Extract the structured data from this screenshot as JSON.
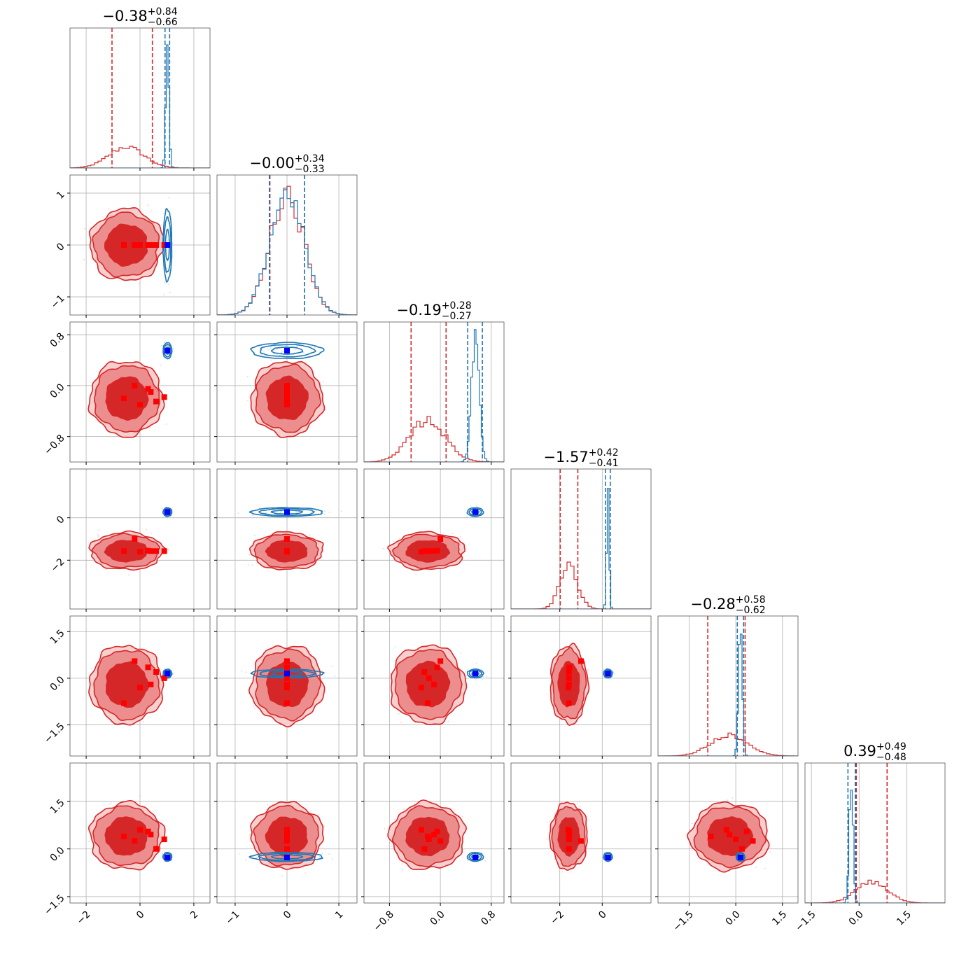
{
  "chart_data": {
    "type": "corner",
    "colors": {
      "posterior_a": "#d62728",
      "posterior_b": "#1f77b4",
      "marker_a": "#ff0000",
      "marker_b": "#0000ff",
      "grid": "#b0b0b0"
    },
    "parameters": [
      {
        "title_main": "−0.38",
        "title_plus": "+0.84",
        "title_minus": "−0.66",
        "range": [
          -2.6,
          2.6
        ],
        "ticks": [
          -2,
          0,
          2
        ],
        "tick_labels": [
          "−2",
          "0",
          "2"
        ],
        "red_quantiles": [
          -1.04,
          0.46
        ],
        "blue_quantiles": [
          0.93,
          1.1
        ],
        "red_hist": {
          "mu": -0.5,
          "sigma": 0.65
        },
        "blue_hist": {
          "mu": 1.02,
          "sigma": 0.06
        }
      },
      {
        "title_main": "−0.00",
        "title_plus": "+0.34",
        "title_minus": "−0.33",
        "range": [
          -1.35,
          1.35
        ],
        "ticks": [
          -1,
          0,
          1
        ],
        "tick_labels": [
          "−1",
          "0",
          "1"
        ],
        "red_quantiles": [
          -0.33,
          0.34
        ],
        "blue_quantiles": [
          -0.34,
          0.34
        ],
        "red_hist": {
          "mu": 0.0,
          "sigma": 0.33
        },
        "blue_hist": {
          "mu": 0.0,
          "sigma": 0.33
        }
      },
      {
        "title_main": "−0.19",
        "title_plus": "+0.28",
        "title_minus": "−0.27",
        "range": [
          -1.2,
          1.0
        ],
        "ticks": [
          -0.8,
          0.0,
          0.8
        ],
        "tick_labels": [
          "−0.8",
          "0.0",
          "0.8"
        ],
        "red_quantiles": [
          -0.46,
          0.09
        ],
        "blue_quantiles": [
          0.43,
          0.66
        ],
        "red_hist": {
          "mu": -0.2,
          "sigma": 0.28
        },
        "blue_hist": {
          "mu": 0.55,
          "sigma": 0.06
        }
      },
      {
        "title_main": "−1.57",
        "title_plus": "+0.42",
        "title_minus": "−0.41",
        "range": [
          -4.3,
          2.3
        ],
        "ticks": [
          -2,
          0
        ],
        "tick_labels": [
          "−2",
          "0"
        ],
        "red_quantiles": [
          -1.98,
          -1.15
        ],
        "blue_quantiles": [
          0.15,
          0.38
        ],
        "red_hist": {
          "mu": -1.57,
          "sigma": 0.42
        },
        "blue_hist": {
          "mu": 0.27,
          "sigma": 0.06
        }
      },
      {
        "title_main": "−0.28",
        "title_plus": "+0.58",
        "title_minus": "−0.62",
        "range": [
          -2.5,
          2.0
        ],
        "ticks": [
          -1.5,
          0.0,
          1.5
        ],
        "tick_labels": [
          "−1.5",
          "0.0",
          "1.5"
        ],
        "red_quantiles": [
          -0.9,
          0.3
        ],
        "blue_quantiles": [
          0.05,
          0.25
        ],
        "red_hist": {
          "mu": -0.2,
          "sigma": 0.6
        },
        "blue_hist": {
          "mu": 0.15,
          "sigma": 0.06
        }
      },
      {
        "title_main": "0.39",
        "title_plus": "+0.49",
        "title_minus": "−0.48",
        "range": [
          -1.7,
          2.7
        ],
        "ticks": [
          -1.5,
          0.0,
          1.5
        ],
        "tick_labels": [
          "−1.5",
          "0.0",
          "1.5"
        ],
        "red_quantiles": [
          -0.09,
          0.88
        ],
        "blue_quantiles": [
          -0.35,
          -0.12
        ],
        "red_hist": {
          "mu": 0.4,
          "sigma": 0.5
        },
        "blue_hist": {
          "mu": -0.25,
          "sigma": 0.06
        }
      }
    ],
    "red_markers": [
      [
        -0.6,
        0.0,
        -0.2,
        -1.57,
        -0.8,
        0.39
      ],
      [
        0.4,
        0.0,
        -0.1,
        -1.57,
        -0.2,
        0.45
      ],
      [
        0.9,
        0.0,
        -0.18,
        -1.57,
        0.0,
        0.3
      ],
      [
        -0.2,
        0.0,
        0.0,
        -1.0,
        0.55,
        0.25
      ],
      [
        0.6,
        0.0,
        -0.25,
        -1.57,
        0.2,
        0.0
      ],
      [
        0.0,
        0.0,
        -0.3,
        -1.6,
        -0.3,
        0.6
      ],
      [
        0.3,
        0.0,
        -0.05,
        -1.55,
        0.35,
        0.55
      ]
    ],
    "blue_marker": [
      1.02,
      0.0,
      0.55,
      0.27,
      0.15,
      -0.27
    ]
  }
}
